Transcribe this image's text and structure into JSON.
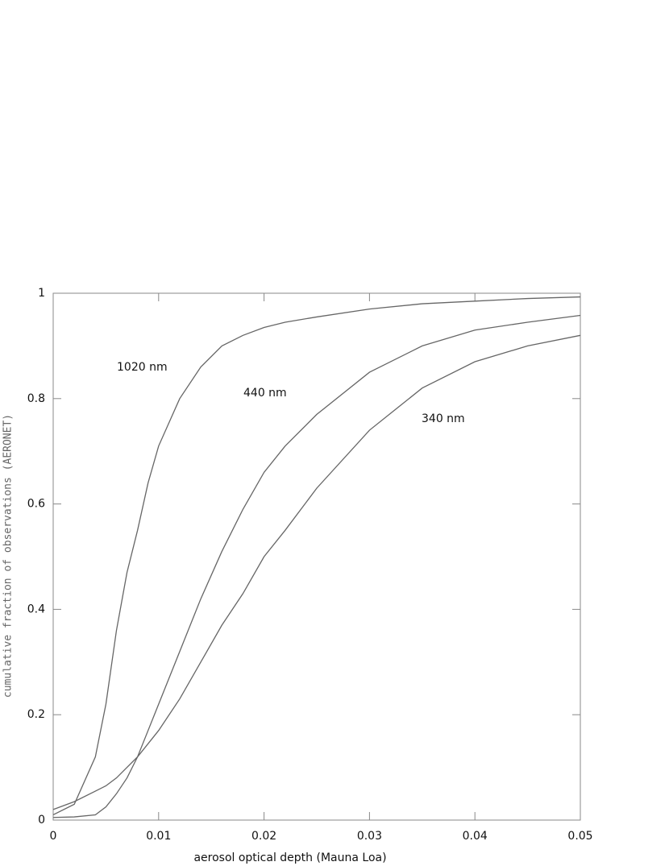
{
  "chart_data": {
    "type": "line",
    "xlabel": "aerosol optical depth (Mauna Loa)",
    "ylabel": "cumulative fraction of observations (AERONET)",
    "x": [
      0,
      0.002,
      0.004,
      0.005,
      0.006,
      0.007,
      0.008,
      0.009,
      0.01,
      0.012,
      0.014,
      0.016,
      0.018,
      0.02,
      0.022,
      0.025,
      0.03,
      0.035,
      0.04,
      0.045,
      0.05
    ],
    "series": [
      {
        "name": "1020 nm",
        "color": "#666666",
        "values": [
          0.01,
          0.03,
          0.12,
          0.22,
          0.36,
          0.47,
          0.55,
          0.64,
          0.71,
          0.8,
          0.86,
          0.9,
          0.92,
          0.935,
          0.945,
          0.955,
          0.97,
          0.98,
          0.985,
          0.99,
          0.993
        ]
      },
      {
        "name": "440 nm",
        "color": "#666666",
        "values": [
          0.005,
          0.006,
          0.01,
          0.025,
          0.05,
          0.08,
          0.12,
          0.17,
          0.22,
          0.32,
          0.42,
          0.51,
          0.59,
          0.66,
          0.71,
          0.77,
          0.85,
          0.9,
          0.93,
          0.945,
          0.958
        ]
      },
      {
        "name": "340 nm",
        "color": "#666666",
        "values": [
          0.02,
          0.035,
          0.055,
          0.065,
          0.08,
          0.1,
          0.12,
          0.145,
          0.17,
          0.23,
          0.3,
          0.37,
          0.43,
          0.5,
          0.55,
          0.63,
          0.74,
          0.82,
          0.87,
          0.9,
          0.92
        ]
      }
    ],
    "xlim": [
      0,
      0.05
    ],
    "xticks": [
      0,
      0.01,
      0.02,
      0.03,
      0.04,
      0.05
    ],
    "ylim": [
      0,
      1
    ],
    "yticks": [
      0,
      0.2,
      0.4,
      0.6,
      0.8,
      1
    ]
  }
}
